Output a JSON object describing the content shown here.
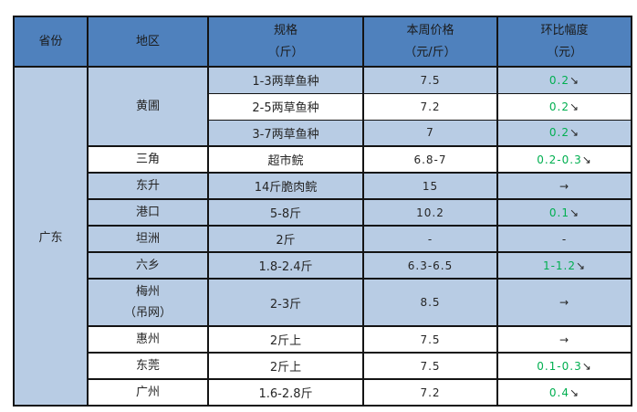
{
  "colors": {
    "header_bg": "#4F81BD",
    "shaded_row_bg": "#B8CCE4",
    "white_row_bg": "#FFFFFF",
    "border": "#141414",
    "text": "#262626",
    "positive_green": "#00AF50"
  },
  "icons": {
    "down_right_arrow": "↘",
    "right_arrow": "→"
  },
  "table": {
    "headers": [
      {
        "title": "省份",
        "unit": ""
      },
      {
        "title": "地区",
        "unit": ""
      },
      {
        "title": "规格",
        "unit": "（斤）"
      },
      {
        "title": "本周价格",
        "unit": "（元/斤）"
      },
      {
        "title": "环比幅度",
        "unit": "（元）"
      }
    ],
    "province": {
      "name": "广东",
      "rowspan": 12
    },
    "rows": [
      {
        "region": "黄圃",
        "region_rowspan": 3,
        "spec": "1-3两草鱼种",
        "price": "7.5",
        "change": "0.2",
        "trend": "down",
        "shaded": true,
        "group_end": false
      },
      {
        "spec": "2-5两草鱼种",
        "price": "7.2",
        "change": "0.2",
        "trend": "down",
        "shaded": false,
        "group_end": false
      },
      {
        "spec": "3-7两草鱼种",
        "price": "7",
        "change": "0.2",
        "trend": "down",
        "shaded": true,
        "group_end": true
      },
      {
        "region": "三角",
        "region_rowspan": 1,
        "spec": "超市鲩",
        "price": "6.8-7",
        "change": "0.2-0.3",
        "trend": "down",
        "shaded": false,
        "group_end": true
      },
      {
        "region": "东升",
        "region_rowspan": 1,
        "spec": "14斤脆肉鲩",
        "price": "15",
        "change": "",
        "trend": "flat",
        "shaded": true,
        "group_end": true
      },
      {
        "region": "港口",
        "region_rowspan": 1,
        "spec": "5-8斤",
        "price": "10.2",
        "change": "0.1",
        "trend": "down",
        "shaded": true,
        "group_end": true
      },
      {
        "region": "坦洲",
        "region_rowspan": 1,
        "spec": "2斤",
        "price": "-",
        "change": "-",
        "trend": "none",
        "shaded": true,
        "group_end": true
      },
      {
        "region": "六乡",
        "region_rowspan": 1,
        "spec": "1.8-2.4斤",
        "price": "6.3-6.5",
        "change": "1-1.2",
        "trend": "down",
        "shaded": true,
        "group_end": true
      },
      {
        "region": "梅州",
        "region_line2": "（吊网）",
        "region_rowspan": 1,
        "spec": "2-3斤",
        "price": "8.5",
        "change": "",
        "trend": "flat",
        "shaded": true,
        "tall": true,
        "group_end": true
      },
      {
        "region": "惠州",
        "region_rowspan": 1,
        "spec": "2斤上",
        "price": "7.5",
        "change": "",
        "trend": "flat",
        "shaded": false,
        "group_end": true
      },
      {
        "region": "东莞",
        "region_rowspan": 1,
        "spec": "2斤上",
        "price": "7.5",
        "change": "0.1-0.3",
        "trend": "down",
        "shaded": false,
        "group_end": true
      },
      {
        "region": "广州",
        "region_rowspan": 1,
        "spec": "1.6-2.8斤",
        "price": "7.2",
        "change": "0.4",
        "trend": "down",
        "shaded": false,
        "group_end": true
      }
    ]
  },
  "chart_data": {
    "type": "table",
    "columns": [
      "省份",
      "地区",
      "规格（斤）",
      "本周价格（元/斤）",
      "环比幅度（元）"
    ],
    "rows": [
      [
        "广东",
        "黄圃",
        "1-3两草鱼种",
        "7.5",
        "0.2↘"
      ],
      [
        "广东",
        "黄圃",
        "2-5两草鱼种",
        "7.2",
        "0.2↘"
      ],
      [
        "广东",
        "黄圃",
        "3-7两草鱼种",
        "7",
        "0.2↘"
      ],
      [
        "广东",
        "三角",
        "超市鲩",
        "6.8-7",
        "0.2-0.3↘"
      ],
      [
        "广东",
        "东升",
        "14斤脆肉鲩",
        "15",
        "→"
      ],
      [
        "广东",
        "港口",
        "5-8斤",
        "10.2",
        "0.1↘"
      ],
      [
        "广东",
        "坦洲",
        "2斤",
        "-",
        "-"
      ],
      [
        "广东",
        "六乡",
        "1.8-2.4斤",
        "6.3-6.5",
        "1-1.2↘"
      ],
      [
        "广东",
        "梅州（吊网）",
        "2-3斤",
        "8.5",
        "→"
      ],
      [
        "广东",
        "惠州",
        "2斤上",
        "7.5",
        "→"
      ],
      [
        "广东",
        "东莞",
        "2斤上",
        "7.5",
        "0.1-0.3↘"
      ],
      [
        "广东",
        "广州",
        "1.6-2.8斤",
        "7.2",
        "0.4↘"
      ]
    ]
  }
}
